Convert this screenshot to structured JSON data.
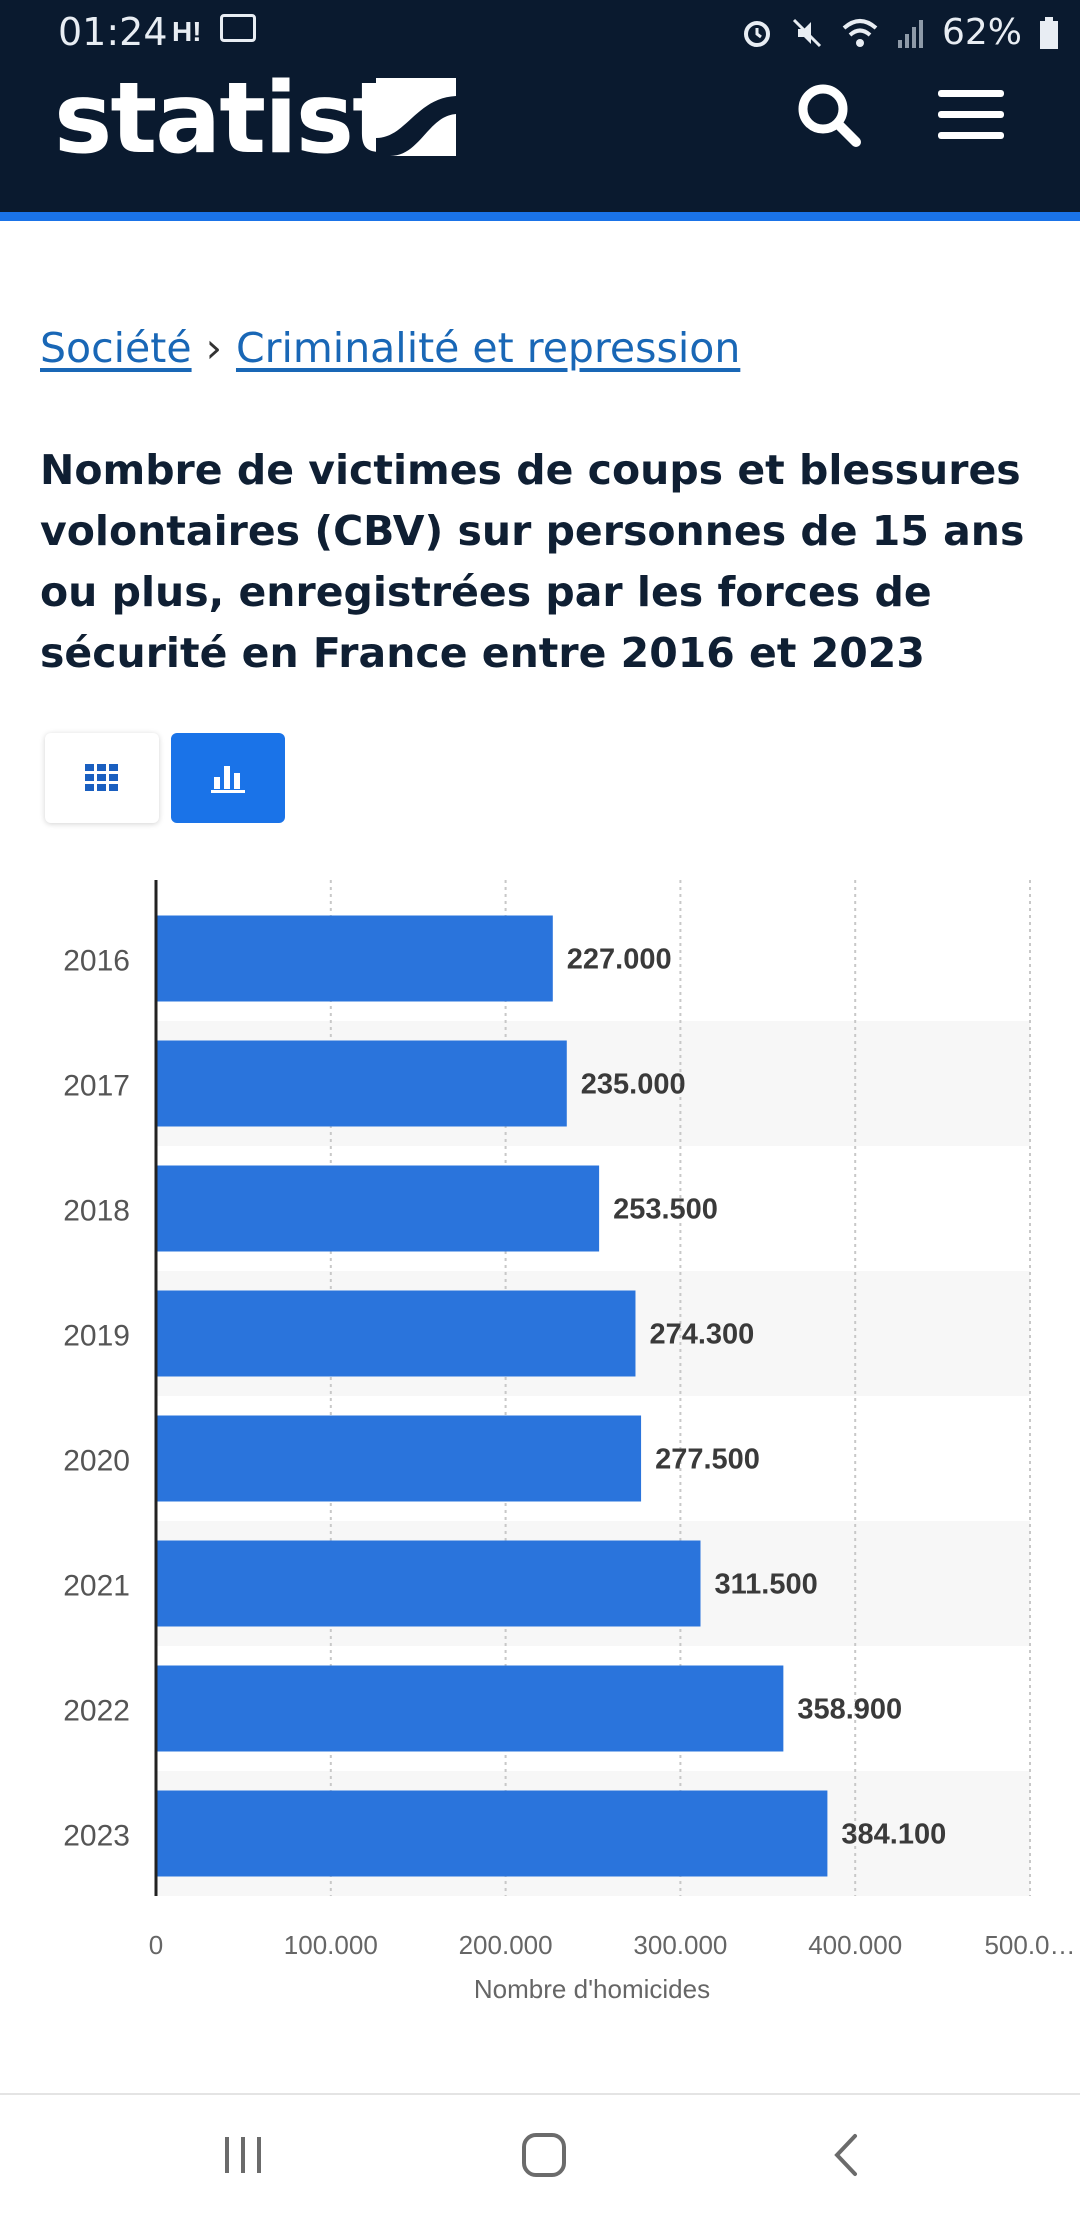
{
  "status_bar": {
    "time": "01:24",
    "carrier": "H!",
    "battery": "62%"
  },
  "header": {
    "logo_text": "statista",
    "icons": [
      "search-icon",
      "menu-icon"
    ]
  },
  "breadcrumb": {
    "items": [
      "Société",
      "Criminalité et repression"
    ],
    "separator": "›"
  },
  "title": "Nombre de victimes de coups et blessures volontaires (CBV) sur personnes de 15 ans ou plus, enregistrées par les forces de sécurité en France entre 2016 et 2023",
  "view_toggle": {
    "options": [
      "table-view",
      "chart-view"
    ],
    "selected": "chart-view"
  },
  "chart_data": {
    "type": "bar",
    "orientation": "horizontal",
    "categories": [
      "2016",
      "2017",
      "2018",
      "2019",
      "2020",
      "2021",
      "2022",
      "2023"
    ],
    "values": [
      227000,
      235000,
      253500,
      274300,
      277500,
      311500,
      358900,
      384100
    ],
    "value_labels": [
      "227.000",
      "235.000",
      "253.500",
      "274.300",
      "277.500",
      "311.500",
      "358.900",
      "384.100"
    ],
    "xlabel": "Nombre d'homicides",
    "xlim": [
      0,
      500000
    ],
    "x_ticks": [
      "0",
      "100.000",
      "200.000",
      "300.000",
      "400.000",
      "500.0…"
    ],
    "grid": true,
    "bar_color": "#2a74dc"
  },
  "colors": {
    "header_bg": "#0a1a2f",
    "accent": "#1a73e8",
    "link": "#1967b6"
  }
}
